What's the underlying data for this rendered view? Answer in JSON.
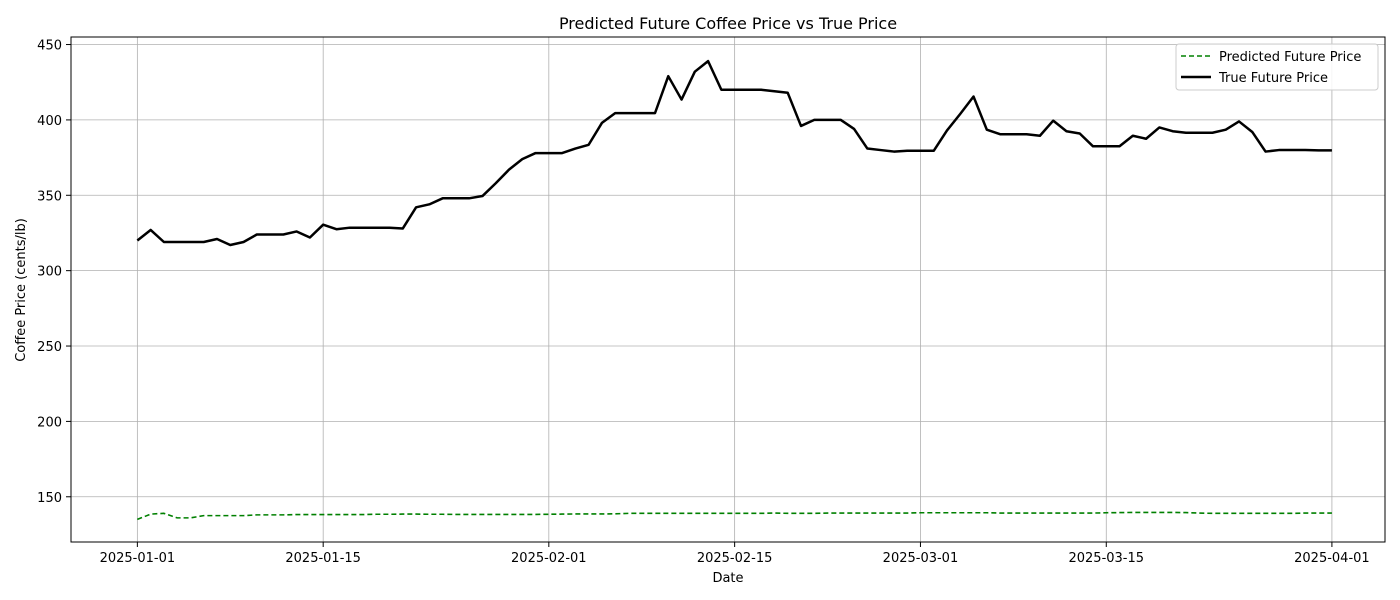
{
  "chart_data": {
    "type": "line",
    "title": "Predicted Future Coffee Price vs True Price",
    "xlabel": "Date",
    "ylabel": "Coffee Price (cents/lb)",
    "xlim": [
      "2024-12-27",
      "2025-04-05"
    ],
    "ylim": [
      120,
      455
    ],
    "xticks": [
      "2025-01-01",
      "2025-01-15",
      "2025-02-01",
      "2025-02-15",
      "2025-03-01",
      "2025-03-15",
      "2025-04-01"
    ],
    "yticks": [
      150,
      200,
      250,
      300,
      350,
      400,
      450
    ],
    "grid": true,
    "legend_position": "top-right",
    "series": [
      {
        "name": "Predicted Future Price",
        "color": "#008000",
        "linestyle": "dashed",
        "x": [
          "2025-01-01",
          "2025-01-02",
          "2025-01-03",
          "2025-01-04",
          "2025-01-05",
          "2025-01-06",
          "2025-01-07",
          "2025-01-08",
          "2025-01-09",
          "2025-01-10",
          "2025-01-11",
          "2025-01-12",
          "2025-01-13",
          "2025-01-14",
          "2025-01-15",
          "2025-01-16",
          "2025-01-17",
          "2025-01-18",
          "2025-01-19",
          "2025-01-20",
          "2025-01-21",
          "2025-01-22",
          "2025-01-23",
          "2025-01-24",
          "2025-01-25",
          "2025-01-26",
          "2025-01-27",
          "2025-01-28",
          "2025-01-29",
          "2025-01-30",
          "2025-01-31",
          "2025-02-01",
          "2025-02-02",
          "2025-02-03",
          "2025-02-04",
          "2025-02-05",
          "2025-02-06",
          "2025-02-07",
          "2025-02-08",
          "2025-02-09",
          "2025-02-10",
          "2025-02-11",
          "2025-02-12",
          "2025-02-13",
          "2025-02-14",
          "2025-02-15",
          "2025-02-16",
          "2025-02-17",
          "2025-02-18",
          "2025-02-19",
          "2025-02-20",
          "2025-02-21",
          "2025-02-22",
          "2025-02-23",
          "2025-02-24",
          "2025-02-25",
          "2025-02-26",
          "2025-02-27",
          "2025-02-28",
          "2025-03-01",
          "2025-03-02",
          "2025-03-03",
          "2025-03-04",
          "2025-03-05",
          "2025-03-06",
          "2025-03-07",
          "2025-03-08",
          "2025-03-09",
          "2025-03-10",
          "2025-03-11",
          "2025-03-12",
          "2025-03-13",
          "2025-03-14",
          "2025-03-15",
          "2025-03-16",
          "2025-03-17",
          "2025-03-18",
          "2025-03-19",
          "2025-03-20",
          "2025-03-21",
          "2025-03-22",
          "2025-03-23",
          "2025-03-24",
          "2025-03-25",
          "2025-03-26",
          "2025-03-27",
          "2025-03-28",
          "2025-03-29",
          "2025-03-30",
          "2025-03-31",
          "2025-04-01"
        ],
        "values": [
          135,
          138.5,
          139,
          136,
          136,
          137.5,
          137.5,
          137.5,
          137.5,
          138,
          138,
          138,
          138.2,
          138.2,
          138.2,
          138.2,
          138.2,
          138.2,
          138.4,
          138.4,
          138.5,
          138.5,
          138.4,
          138.4,
          138.3,
          138.3,
          138.3,
          138.3,
          138.3,
          138.3,
          138.3,
          138.4,
          138.5,
          138.6,
          138.6,
          138.6,
          138.7,
          139,
          139,
          139,
          139,
          139,
          139,
          139,
          139,
          139,
          139,
          139,
          139.2,
          139,
          139,
          139,
          139.2,
          139.2,
          139.2,
          139.2,
          139.2,
          139.2,
          139.2,
          139.4,
          139.4,
          139.4,
          139.4,
          139.4,
          139.4,
          139.2,
          139.2,
          139.2,
          139.2,
          139.2,
          139.2,
          139.2,
          139.2,
          139.4,
          139.5,
          139.6,
          139.6,
          139.6,
          139.6,
          139.5,
          139.2,
          139,
          139,
          139,
          139,
          139,
          139,
          139,
          139.2,
          139.2,
          139.2
        ]
      },
      {
        "name": "True Future Price",
        "color": "#000000",
        "linestyle": "solid",
        "x": [
          "2025-01-01",
          "2025-01-02",
          "2025-01-03",
          "2025-01-04",
          "2025-01-05",
          "2025-01-06",
          "2025-01-07",
          "2025-01-08",
          "2025-01-09",
          "2025-01-10",
          "2025-01-11",
          "2025-01-12",
          "2025-01-13",
          "2025-01-14",
          "2025-01-15",
          "2025-01-16",
          "2025-01-17",
          "2025-01-18",
          "2025-01-19",
          "2025-01-20",
          "2025-01-21",
          "2025-01-22",
          "2025-01-23",
          "2025-01-24",
          "2025-01-25",
          "2025-01-26",
          "2025-01-27",
          "2025-01-28",
          "2025-01-29",
          "2025-01-30",
          "2025-01-31",
          "2025-02-01",
          "2025-02-02",
          "2025-02-03",
          "2025-02-04",
          "2025-02-05",
          "2025-02-06",
          "2025-02-07",
          "2025-02-08",
          "2025-02-09",
          "2025-02-10",
          "2025-02-11",
          "2025-02-12",
          "2025-02-13",
          "2025-02-14",
          "2025-02-15",
          "2025-02-16",
          "2025-02-17",
          "2025-02-18",
          "2025-02-19",
          "2025-02-20",
          "2025-02-21",
          "2025-02-22",
          "2025-02-23",
          "2025-02-24",
          "2025-02-25",
          "2025-02-26",
          "2025-02-27",
          "2025-02-28",
          "2025-03-01",
          "2025-03-02",
          "2025-03-03",
          "2025-03-04",
          "2025-03-05",
          "2025-03-06",
          "2025-03-07",
          "2025-03-08",
          "2025-03-09",
          "2025-03-10",
          "2025-03-11",
          "2025-03-12",
          "2025-03-13",
          "2025-03-14",
          "2025-03-15",
          "2025-03-16",
          "2025-03-17",
          "2025-03-18",
          "2025-03-19",
          "2025-03-20",
          "2025-03-21",
          "2025-03-22",
          "2025-03-23",
          "2025-03-24",
          "2025-03-25",
          "2025-03-26",
          "2025-03-27",
          "2025-03-28",
          "2025-03-29",
          "2025-03-30",
          "2025-03-31",
          "2025-04-01"
        ],
        "values": [
          320,
          327,
          319,
          319,
          319,
          319,
          321,
          317,
          319,
          324,
          324,
          324,
          326,
          322,
          330.5,
          327.5,
          328.5,
          328.5,
          328.5,
          328.5,
          328,
          342,
          344,
          348,
          348,
          348,
          349.5,
          358,
          367,
          374,
          378,
          378,
          378,
          381,
          383.5,
          398,
          404.5,
          404.5,
          404.5,
          404.5,
          429,
          413.5,
          432,
          439,
          420,
          420,
          420,
          420,
          419,
          418,
          396,
          400,
          400,
          400,
          394,
          381,
          380,
          379,
          379.5,
          379.5,
          379.5,
          393,
          404,
          415.5,
          393.5,
          390.5,
          390.5,
          390.5,
          389.5,
          399.5,
          392.5,
          391,
          382.5,
          382.5,
          382.5,
          389.5,
          387.5,
          395,
          392.5,
          391.5,
          391.5,
          391.5,
          393.5,
          399,
          392,
          379,
          380,
          380,
          380,
          379.8,
          379.8
        ]
      }
    ]
  }
}
